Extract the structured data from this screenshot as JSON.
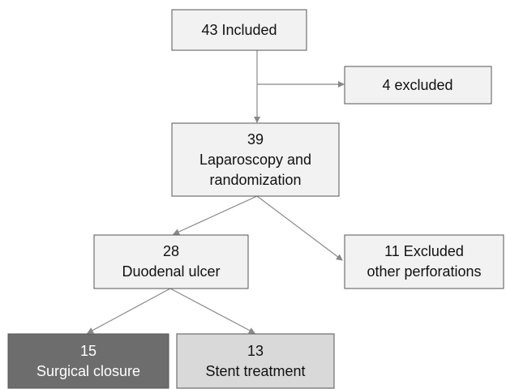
{
  "nodes": [
    {
      "lines": [
        "43 Included"
      ]
    },
    {
      "lines": [
        "4 excluded"
      ]
    },
    {
      "lines": [
        "39",
        "Laparoscopy and",
        "randomization"
      ]
    },
    {
      "lines": [
        "28",
        "Duodenal ulcer"
      ]
    },
    {
      "lines": [
        "11 Excluded",
        "other perforations"
      ]
    },
    {
      "lines": [
        "15",
        "Surgical closure"
      ]
    },
    {
      "lines": [
        "13",
        "Stent treatment"
      ]
    }
  ]
}
